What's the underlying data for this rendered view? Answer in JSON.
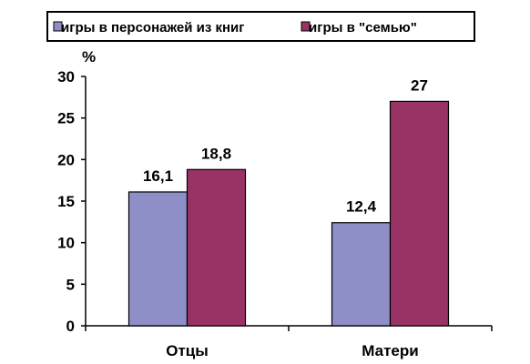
{
  "chart_data": {
    "type": "bar",
    "ylabel": "%",
    "ylim": [
      0,
      30
    ],
    "yticks": [
      0,
      5,
      10,
      15,
      20,
      25,
      30
    ],
    "categories": [
      "Отцы",
      "Матери"
    ],
    "series": [
      {
        "name": "игры в персонажей из книг",
        "values": [
          16.1,
          12.4
        ],
        "labels": [
          "16,1",
          "12,4"
        ],
        "color": "#8f8fc8"
      },
      {
        "name": "игры в \"семью\"",
        "values": [
          18.8,
          27
        ],
        "labels": [
          "18,8",
          "27"
        ],
        "color": "#993366"
      }
    ],
    "legend_position": "top",
    "grid": false
  }
}
